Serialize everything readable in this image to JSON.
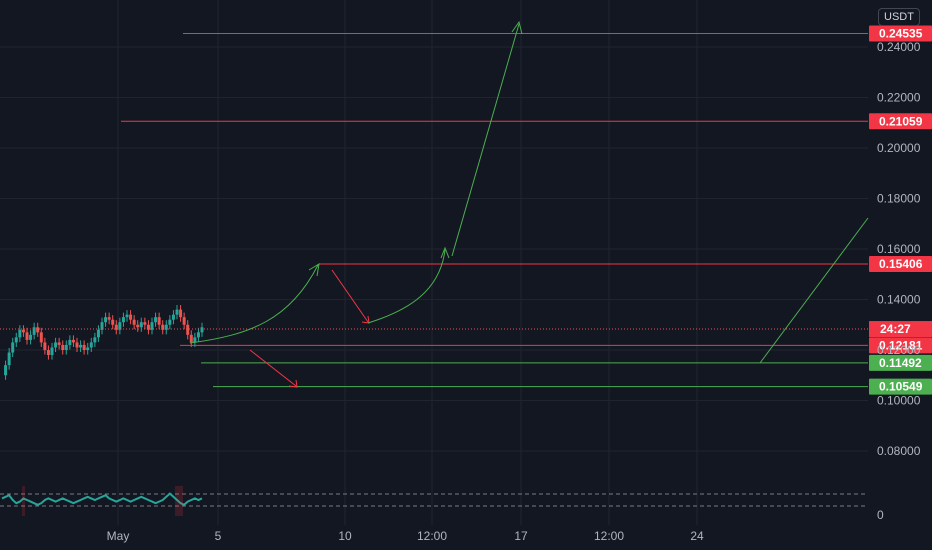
{
  "currency_label": "USDT",
  "countdown_label": "24:27",
  "colors": {
    "background": "#131722",
    "grid": "#1f2430",
    "up": "#26a69a",
    "down": "#ef5350",
    "resistance": "#f23645",
    "support": "#4caf50",
    "projection": "#4caf50",
    "axis_text": "#b2b5be"
  },
  "chart_data": {
    "type": "line",
    "title": "",
    "xlabel": "",
    "ylabel": "",
    "ylim": [
      0.0,
      0.255
    ],
    "price_ticks": [
      "0.24000",
      "0.22000",
      "0.20000",
      "0.18000",
      "0.16000",
      "0.14000",
      "0.12000",
      "0.10000",
      "0.08000"
    ],
    "oscillator_tick": "0",
    "time_ticks": [
      "May",
      "5",
      "10",
      "12:00",
      "17",
      "12:00",
      "24"
    ],
    "current_price": 0.1283,
    "horizontal_levels": [
      {
        "label": "0.24535",
        "value": 0.24535,
        "kind": "resistance"
      },
      {
        "label": "0.21059",
        "value": 0.21059,
        "kind": "resistance"
      },
      {
        "label": "0.15406",
        "value": 0.15406,
        "kind": "resistance"
      },
      {
        "label": "0.12181",
        "value": 0.12181,
        "kind": "resistance"
      },
      {
        "label": "0.11492",
        "value": 0.11492,
        "kind": "support"
      },
      {
        "label": "0.10549",
        "value": 0.10549,
        "kind": "support"
      }
    ],
    "price_series": [
      0.11,
      0.114,
      0.119,
      0.123,
      0.125,
      0.128,
      0.127,
      0.124,
      0.126,
      0.129,
      0.127,
      0.123,
      0.12,
      0.118,
      0.121,
      0.123,
      0.122,
      0.12,
      0.122,
      0.124,
      0.123,
      0.121,
      0.122,
      0.12,
      0.121,
      0.123,
      0.125,
      0.128,
      0.131,
      0.133,
      0.132,
      0.13,
      0.128,
      0.131,
      0.133,
      0.134,
      0.132,
      0.13,
      0.129,
      0.131,
      0.13,
      0.128,
      0.131,
      0.133,
      0.13,
      0.128,
      0.13,
      0.132,
      0.134,
      0.136,
      0.133,
      0.13,
      0.126,
      0.123,
      0.125,
      0.127,
      0.129
    ],
    "oscillator_series": [
      0.6,
      0.7,
      0.8,
      0.5,
      0.3,
      0.4,
      0.6,
      0.5,
      0.4,
      0.3,
      0.2,
      0.3,
      0.5,
      0.6,
      0.5,
      0.4,
      0.5,
      0.6,
      0.5,
      0.4,
      0.3,
      0.4,
      0.5,
      0.6,
      0.7,
      0.6,
      0.5,
      0.6,
      0.7,
      0.8,
      0.6,
      0.5,
      0.4,
      0.5,
      0.6,
      0.5,
      0.4,
      0.5,
      0.6,
      0.7,
      0.6,
      0.5,
      0.4,
      0.3,
      0.4,
      0.5,
      0.7,
      0.9,
      0.7,
      0.5,
      0.3,
      0.2,
      0.4,
      0.5,
      0.6,
      0.5,
      0.6
    ]
  }
}
